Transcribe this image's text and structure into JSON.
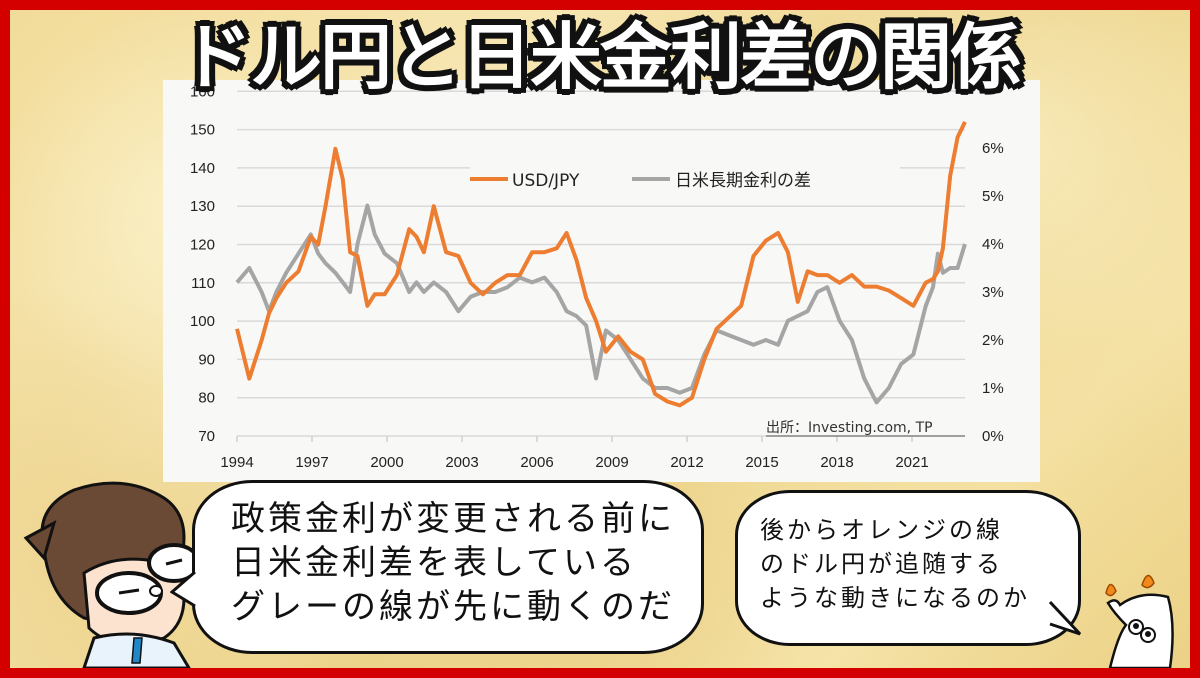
{
  "title": "ドル円と日米金利差の関係",
  "speech_left": {
    "lines": [
      "政策金利が変更される前に",
      "日米金利差を表している",
      "グレーの線が先に動くのだ"
    ]
  },
  "speech_right": {
    "lines": [
      "後からオレンジの線",
      "のドル円が追随する",
      "ような動きになるのか"
    ]
  },
  "characters": {
    "left": "glasses-boy-icon",
    "right": "candle-mascot-icon"
  },
  "colors": {
    "frame": "#d40000",
    "usdjpy": "#ed7d31",
    "spread": "#a5a5a5",
    "panel": "#f8f9f7"
  },
  "chart_data": {
    "type": "line",
    "title": "ドル円と日米金利差の関係",
    "xlabel": "",
    "ylabel_left": "USD/JPY",
    "ylabel_right": "日米長期金利の差 (%)",
    "source": "出所：Investing.com, TP",
    "x_ticks": [
      "1994",
      "1997",
      "2000",
      "2003",
      "2006",
      "2009",
      "2012",
      "2015",
      "2018",
      "2021"
    ],
    "y_left_ticks": [
      "70",
      "80",
      "90",
      "100",
      "110",
      "120",
      "130",
      "140",
      "150",
      "160"
    ],
    "y_right_ticks": [
      "0%",
      "1%",
      "2%",
      "3%",
      "4%",
      "5%",
      "6%"
    ],
    "ylim_left": [
      70,
      160
    ],
    "ylim_right": [
      0,
      7.25
    ],
    "grid": true,
    "legend_position": "top-center",
    "x": [
      1994.0,
      1994.5,
      1995.0,
      1995.3,
      1995.6,
      1996.0,
      1996.5,
      1997.0,
      1997.3,
      1997.6,
      1998.0,
      1998.3,
      1998.6,
      1998.9,
      1999.3,
      1999.6,
      2000.0,
      2000.5,
      2001.0,
      2001.3,
      2001.6,
      2002.0,
      2002.5,
      2003.0,
      2003.5,
      2004.0,
      2004.5,
      2005.0,
      2005.5,
      2006.0,
      2006.5,
      2007.0,
      2007.4,
      2007.8,
      2008.2,
      2008.6,
      2009.0,
      2009.5,
      2010.0,
      2010.5,
      2011.0,
      2011.5,
      2012.0,
      2012.5,
      2013.0,
      2013.5,
      2014.0,
      2014.5,
      2015.0,
      2015.5,
      2016.0,
      2016.4,
      2016.8,
      2017.2,
      2017.6,
      2018.0,
      2018.5,
      2019.0,
      2019.5,
      2020.0,
      2020.5,
      2021.0,
      2021.5,
      2022.0,
      2022.3,
      2022.5,
      2022.7,
      2023.0,
      2023.3,
      2023.6
    ],
    "series": [
      {
        "name": "USD/JPY",
        "axis": "left",
        "color": "#ed7d31",
        "values": [
          98,
          85,
          95,
          102,
          106,
          110,
          113,
          122,
          120,
          130,
          145,
          137,
          118,
          117,
          104,
          107,
          107,
          112,
          124,
          122,
          118,
          130,
          118,
          117,
          110,
          107,
          110,
          112,
          112,
          118,
          118,
          119,
          123,
          116,
          106,
          100,
          92,
          96,
          92,
          90,
          81,
          79,
          78,
          80,
          90,
          98,
          101,
          104,
          117,
          121,
          123,
          118,
          105,
          113,
          112,
          112,
          110,
          112,
          109,
          109,
          108,
          106,
          104,
          110,
          111,
          113,
          119,
          138,
          148,
          152
        ],
        "note": "approximate trace read from gridlines"
      },
      {
        "name": "日米長期金利の差",
        "axis": "right",
        "color": "#a5a5a5",
        "values": [
          3.2,
          3.5,
          3.0,
          2.6,
          3.0,
          3.4,
          3.8,
          4.2,
          3.8,
          3.6,
          3.4,
          3.2,
          3.0,
          4.0,
          4.8,
          4.2,
          3.8,
          3.6,
          3.0,
          3.2,
          3.0,
          3.2,
          3.0,
          2.6,
          2.9,
          3.0,
          3.0,
          3.1,
          3.3,
          3.2,
          3.3,
          3.0,
          2.6,
          2.5,
          2.3,
          1.2,
          2.2,
          2.0,
          1.6,
          1.2,
          1.0,
          1.0,
          0.9,
          1.0,
          1.7,
          2.2,
          2.1,
          2.0,
          1.9,
          2.0,
          1.9,
          2.4,
          2.5,
          2.6,
          3.0,
          3.1,
          2.4,
          2.0,
          1.2,
          0.7,
          1.0,
          1.5,
          1.7,
          2.7,
          3.1,
          3.8,
          3.4,
          3.5,
          3.5,
          4.0
        ],
        "note": "approximate trace read from gridlines"
      }
    ]
  }
}
